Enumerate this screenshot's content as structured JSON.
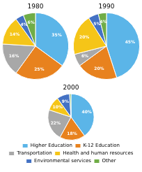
{
  "chart_data": [
    {
      "type": "pie",
      "title": "1980",
      "categories": [
        "Higher Education",
        "K-12 Education",
        "Transportation",
        "Health and human resources",
        "Environmental services",
        "Other"
      ],
      "values": [
        35,
        25,
        16,
        14,
        4,
        6
      ],
      "value_labels": [
        "35%",
        "25%",
        "16%",
        "14%",
        "4%",
        "6%"
      ],
      "colors": [
        "#5BB5E8",
        "#E8821E",
        "#A8A8A8",
        "#F5C518",
        "#4472C4",
        "#70AD47"
      ],
      "data_labels": true
    },
    {
      "type": "pie",
      "title": "1990",
      "categories": [
        "Higher Education",
        "K-12 Education",
        "Transportation",
        "Health and human resources",
        "Environmental services",
        "Other"
      ],
      "values": [
        45,
        20,
        6,
        20,
        5,
        4
      ],
      "value_labels": [
        "45%",
        "20%",
        "6%",
        "20%",
        "5%",
        "4%"
      ],
      "colors": [
        "#5BB5E8",
        "#E8821E",
        "#A8A8A8",
        "#F5C518",
        "#4472C4",
        "#70AD47"
      ],
      "data_labels": true
    },
    {
      "type": "pie",
      "title": "2000",
      "categories": [
        "Higher Education",
        "K-12 Education",
        "Transportation",
        "Health and human resources",
        "Environmental services",
        "Other"
      ],
      "values": [
        40,
        18,
        22,
        10,
        9,
        1
      ],
      "value_labels": [
        "40%",
        "18%",
        "22%",
        "10%",
        "9%",
        null
      ],
      "colors": [
        "#5BB5E8",
        "#E8821E",
        "#A8A8A8",
        "#F5C518",
        "#4472C4",
        "#70AD47"
      ],
      "data_labels": true,
      "legend": "bottom"
    }
  ]
}
